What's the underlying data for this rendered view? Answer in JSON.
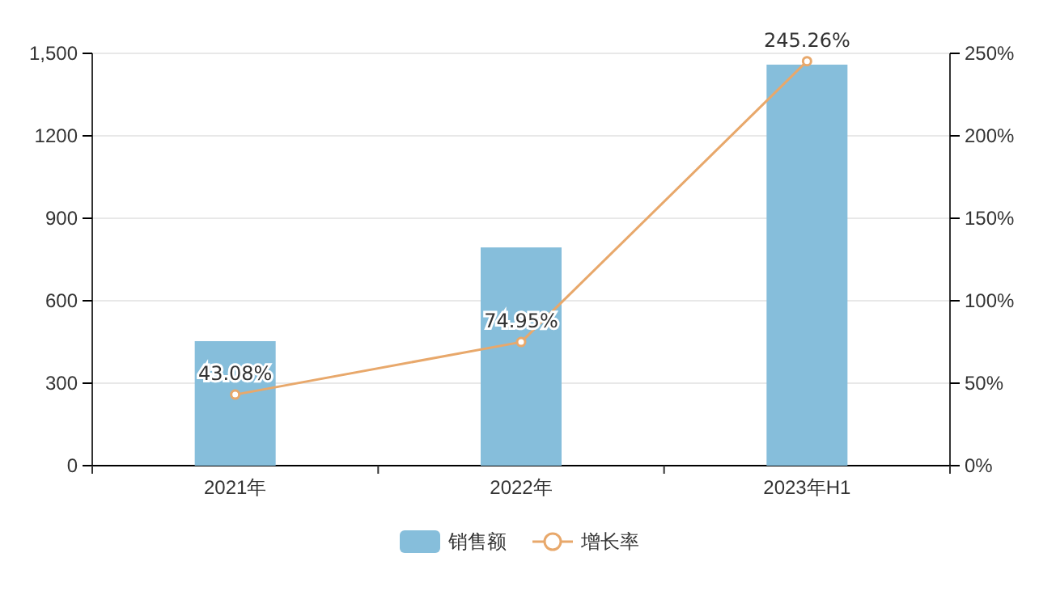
{
  "chart_data": {
    "type": "bar",
    "categories": [
      "2021年",
      "2022年",
      "2023年H1"
    ],
    "series": [
      {
        "name": "销售额",
        "color": "#86bedb",
        "values": [
          453,
          794,
          1459
        ]
      },
      {
        "name": "增长率",
        "type": "line",
        "axis": "y2",
        "color": "#e8a86b",
        "values": [
          43.08,
          74.95,
          245.26
        ],
        "value_labels": [
          "43.08%",
          "74.95%",
          "245.26%"
        ]
      }
    ],
    "ylim": [
      0,
      1500
    ],
    "yticks": [
      0,
      300,
      600,
      900,
      1200,
      {
        "value": 1500,
        "label": "1,500"
      }
    ],
    "y2lim": [
      0,
      250
    ],
    "y2ticks": [
      {
        "value": 0,
        "label": "0%"
      },
      {
        "value": 50,
        "label": "50%"
      },
      {
        "value": 100,
        "label": "100%"
      },
      {
        "value": 150,
        "label": "150%"
      },
      {
        "value": 200,
        "label": "200%"
      },
      {
        "value": 250,
        "label": "250%"
      }
    ],
    "grid": "y",
    "legend": "bottom",
    "marker": "circle"
  }
}
